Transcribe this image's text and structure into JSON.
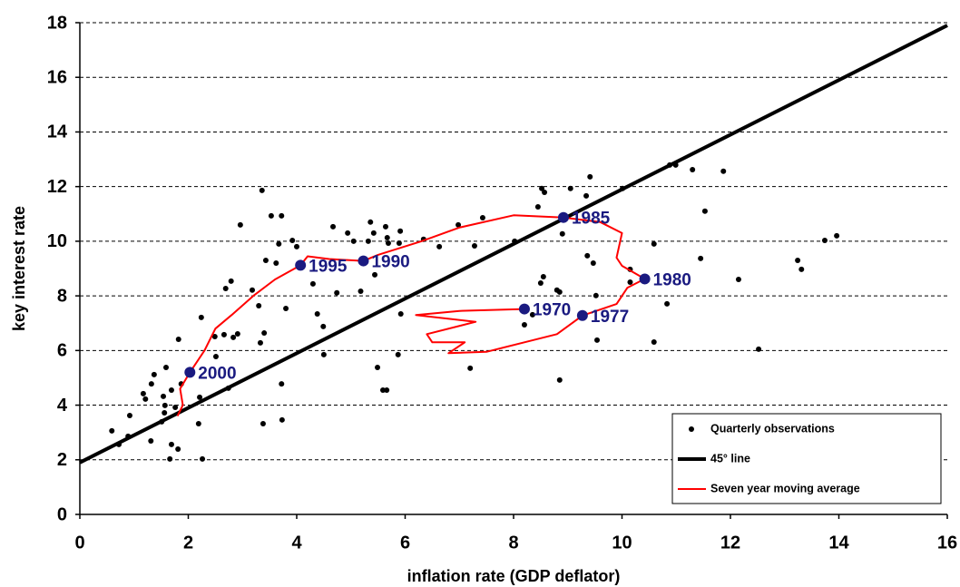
{
  "chart_data": {
    "type": "scatter",
    "x_label": "inflation rate (GDP deflator)",
    "y_label": "key interest rate",
    "xlim": [
      0,
      16
    ],
    "xticks": [
      0,
      2,
      4,
      6,
      8,
      10,
      12,
      14,
      16
    ],
    "ylim": [
      0,
      18
    ],
    "yticks": [
      0,
      2,
      4,
      6,
      8,
      10,
      12,
      14,
      16,
      18
    ],
    "grid": true,
    "legend": "lower right",
    "series": [
      {
        "name": "Quarterly observations",
        "type": "scatter",
        "color": "#000000",
        "x": [
          0.59,
          0.72,
          0.92,
          0.89,
          1.17,
          1.21,
          1.32,
          1.37,
          1.59,
          1.54,
          1.57,
          1.51,
          1.31,
          1.66,
          1.69,
          1.81,
          1.82,
          1.69,
          1.56,
          1.87,
          1.76,
          2.21,
          2.19,
          2.26,
          2.24,
          2.49,
          2.51,
          2.66,
          2.69,
          2.79,
          2.83,
          2.91,
          2.96,
          2.74,
          3.18,
          3.3,
          3.33,
          3.4,
          3.36,
          3.43,
          3.38,
          3.53,
          3.62,
          3.67,
          3.72,
          3.72,
          3.73,
          3.8,
          3.92,
          4.0,
          4.3,
          4.38,
          4.49,
          4.5,
          4.67,
          4.74,
          4.94,
          5.05,
          5.18,
          5.32,
          5.36,
          5.42,
          5.44,
          5.49,
          5.59,
          5.66,
          5.64,
          5.67,
          5.69,
          5.89,
          5.91,
          5.92,
          5.87,
          6.34,
          6.63,
          6.98,
          7.2,
          7.28,
          7.43,
          8.02,
          8.24,
          8.2,
          8.35,
          8.5,
          8.52,
          8.57,
          8.45,
          8.55,
          8.8,
          8.85,
          8.85,
          8.9,
          9.05,
          9.34,
          9.41,
          9.36,
          9.47,
          9.52,
          9.54,
          10.01,
          10.15,
          10.15,
          10.59,
          10.59,
          10.83,
          10.88,
          10.99,
          11.3,
          11.45,
          11.53,
          11.87,
          12.15,
          12.52,
          13.24,
          13.31,
          13.74,
          13.96
        ],
        "y": [
          3.06,
          2.56,
          3.62,
          2.86,
          4.42,
          4.22,
          4.78,
          5.12,
          5.38,
          4.32,
          3.99,
          3.39,
          2.69,
          2.03,
          2.56,
          2.39,
          6.41,
          4.55,
          3.72,
          4.78,
          3.92,
          4.29,
          3.32,
          2.03,
          7.21,
          6.51,
          5.78,
          6.58,
          8.27,
          8.54,
          6.48,
          6.61,
          10.6,
          4.62,
          8.21,
          7.64,
          6.28,
          6.64,
          11.86,
          9.3,
          3.32,
          10.93,
          9.2,
          9.9,
          10.93,
          4.78,
          3.46,
          7.54,
          10.03,
          9.8,
          8.44,
          7.34,
          6.88,
          5.85,
          10.53,
          8.11,
          10.3,
          10.0,
          8.17,
          10.0,
          10.7,
          10.3,
          8.77,
          5.38,
          4.55,
          4.55,
          10.53,
          10.13,
          9.93,
          9.93,
          10.37,
          7.34,
          5.85,
          10.07,
          9.8,
          10.6,
          5.35,
          9.83,
          10.86,
          10.0,
          7.51,
          6.94,
          7.31,
          8.47,
          11.93,
          11.79,
          11.26,
          8.7,
          8.21,
          8.14,
          4.92,
          10.27,
          11.93,
          11.66,
          12.36,
          9.47,
          9.2,
          8.01,
          6.38,
          11.93,
          8.97,
          8.5,
          9.9,
          6.31,
          7.71,
          12.79,
          12.79,
          12.62,
          9.37,
          11.1,
          12.56,
          8.6,
          6.05,
          9.3,
          8.97,
          10.03,
          10.2
        ]
      },
      {
        "name": "45° line",
        "type": "line",
        "color": "#000000",
        "x": [
          0,
          16
        ],
        "y": [
          1.9,
          17.9
        ]
      },
      {
        "name": "Seven year moving average",
        "type": "line",
        "color": "#ff0000",
        "x": [
          8.2,
          7.0,
          6.2,
          7.3,
          6.4,
          6.5,
          7.1,
          6.8,
          7.5,
          8.2,
          8.8,
          9.27,
          9.9,
          10.1,
          10.42,
          10.0,
          9.9,
          10.0,
          9.6,
          8.92,
          8.0,
          7.0,
          6.3,
          5.5,
          5.23,
          4.6,
          4.2,
          4.07,
          3.6,
          3.2,
          2.8,
          2.5,
          2.3,
          2.03,
          1.85,
          1.9,
          1.8
        ],
        "y": [
          7.52,
          7.45,
          7.3,
          7.05,
          6.6,
          6.3,
          6.3,
          5.9,
          5.95,
          6.3,
          6.6,
          7.28,
          7.7,
          8.3,
          8.62,
          9.1,
          9.4,
          10.3,
          10.7,
          10.87,
          10.95,
          10.5,
          10.0,
          9.5,
          9.28,
          9.35,
          9.45,
          9.12,
          8.6,
          8.0,
          7.3,
          6.8,
          6.0,
          5.2,
          4.6,
          4.0,
          3.6
        ]
      }
    ],
    "annotations": [
      {
        "label": "2000",
        "x": 2.03,
        "y": 5.2
      },
      {
        "label": "1995",
        "x": 4.07,
        "y": 9.12
      },
      {
        "label": "1990",
        "x": 5.23,
        "y": 9.28
      },
      {
        "label": "1985",
        "x": 8.92,
        "y": 10.87
      },
      {
        "label": "1980",
        "x": 10.42,
        "y": 8.62
      },
      {
        "label": "1977",
        "x": 9.27,
        "y": 7.28
      },
      {
        "label": "1970",
        "x": 8.2,
        "y": 7.52
      }
    ],
    "annotation_color": "#1a1a80"
  }
}
